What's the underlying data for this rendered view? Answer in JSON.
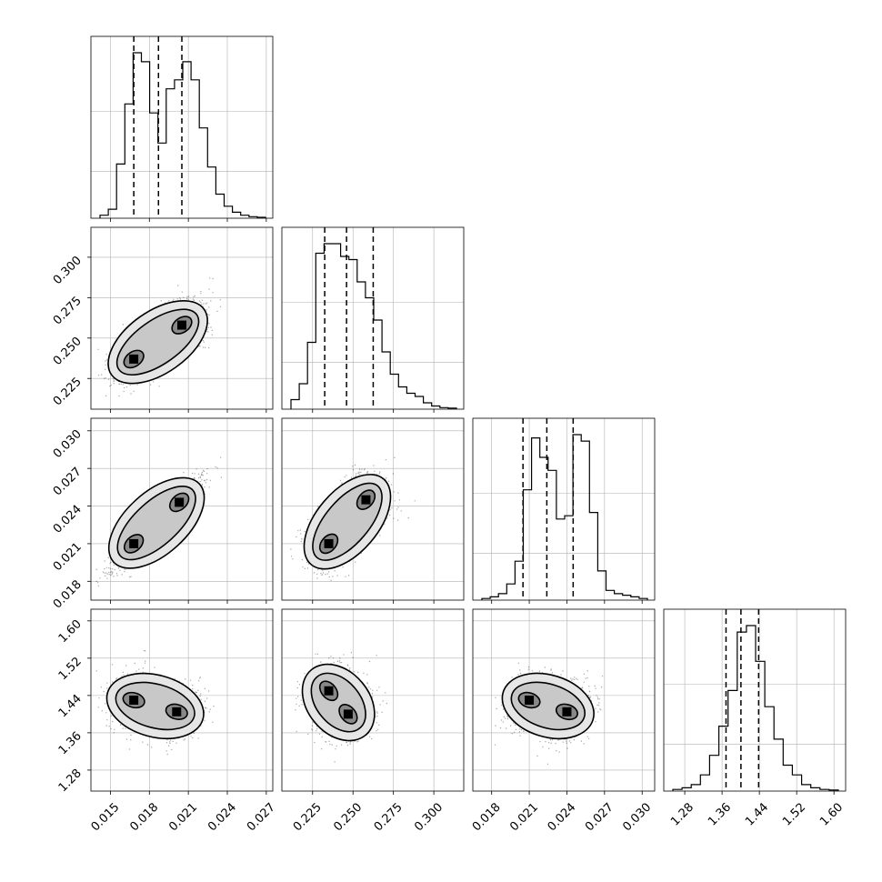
{
  "chart_data": {
    "type": "corner",
    "grid": true,
    "parameters": [
      {
        "range": [
          0.0135,
          0.0275
        ],
        "ticks": [
          "0.015",
          "0.018",
          "0.021",
          "0.024",
          "0.027"
        ],
        "tick_values": [
          0.015,
          0.018,
          0.021,
          0.024,
          0.027
        ]
      },
      {
        "range": [
          0.206,
          0.3185
        ],
        "ticks": [
          "0.225",
          "0.250",
          "0.275",
          "0.300"
        ],
        "tick_values": [
          0.225,
          0.25,
          0.275,
          0.3
        ]
      },
      {
        "range": [
          0.0165,
          0.031
        ],
        "ticks": [
          "0.018",
          "0.021",
          "0.024",
          "0.027",
          "0.030"
        ],
        "tick_values": [
          0.018,
          0.021,
          0.024,
          0.027,
          0.03
        ]
      },
      {
        "range": [
          1.235,
          1.625
        ],
        "ticks": [
          "1.28",
          "1.36",
          "1.44",
          "1.52",
          "1.60"
        ],
        "tick_values": [
          1.28,
          1.36,
          1.44,
          1.52,
          1.6
        ]
      }
    ],
    "quantiles": [
      [
        0.0168,
        0.0187,
        0.0205
      ],
      [
        0.2325,
        0.246,
        0.2625
      ],
      [
        0.0205,
        0.0224,
        0.0245
      ],
      [
        1.3685,
        1.4005,
        1.4385
      ]
    ],
    "histograms": [
      {
        "counts": [
          1,
          3,
          18,
          38,
          55,
          52,
          35,
          25,
          43,
          46,
          52,
          46,
          30,
          17,
          8,
          4,
          2,
          1,
          0.5,
          0.3
        ]
      },
      {
        "counts": [
          3,
          8,
          21,
          49,
          52,
          52,
          48,
          47,
          40,
          35,
          28,
          18,
          11,
          7,
          5,
          4,
          2,
          1,
          0.5,
          0.3
        ]
      },
      {
        "counts": [
          0.5,
          1,
          2,
          5,
          12,
          34,
          50,
          44,
          40,
          25,
          26,
          51,
          49,
          27,
          9,
          3,
          2,
          1.5,
          1,
          0.5
        ]
      },
      {
        "counts": [
          0.5,
          1,
          2,
          5,
          11,
          20,
          31,
          49,
          51,
          40,
          26,
          16,
          8,
          5,
          2,
          1,
          0.5,
          0.3
        ]
      }
    ],
    "modes_2d": [
      {
        "row": 1,
        "col": 0,
        "modes": [
          [
            0.0168,
            0.237
          ],
          [
            0.0205,
            0.258
          ]
        ]
      },
      {
        "row": 2,
        "col": 0,
        "modes": [
          [
            0.0168,
            0.021
          ],
          [
            0.0203,
            0.0243
          ]
        ]
      },
      {
        "row": 2,
        "col": 1,
        "modes": [
          [
            0.235,
            0.021
          ],
          [
            0.258,
            0.0245
          ]
        ]
      },
      {
        "row": 3,
        "col": 0,
        "modes": [
          [
            0.0168,
            1.43
          ],
          [
            0.0201,
            1.405
          ]
        ]
      },
      {
        "row": 3,
        "col": 1,
        "modes": [
          [
            0.235,
            1.45
          ],
          [
            0.247,
            1.4
          ]
        ]
      },
      {
        "row": 3,
        "col": 2,
        "modes": [
          [
            0.021,
            1.43
          ],
          [
            0.024,
            1.405
          ]
        ]
      }
    ]
  }
}
